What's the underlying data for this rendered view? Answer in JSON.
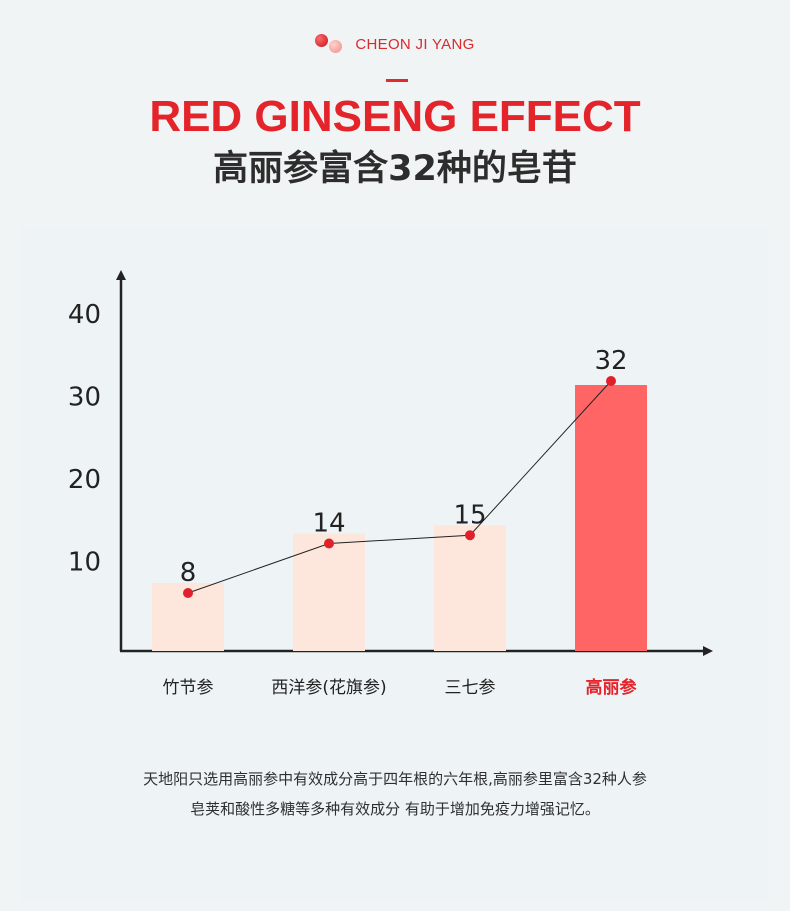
{
  "header": {
    "brand": "CHEON JI YANG",
    "title_en": "RED GINSENG EFFECT",
    "title_cn": "高丽参富含32种的皂苷"
  },
  "description": {
    "line1": "天地阳只选用高丽参中有效成分高于四年根的六年根,高丽参里富含32种人参",
    "line2": "皂荚和酸性多糖等多种有效成分  有助于增加免疫力增强记忆。"
  },
  "colors": {
    "accent": "#e3242b",
    "bar_light": "#fde6dc",
    "bar_highlight": "#ff6565",
    "point": "#e0202b",
    "axis": "#222222"
  },
  "chart_data": {
    "type": "bar",
    "title": "",
    "xlabel": "",
    "ylabel": "",
    "categories": [
      "竹节参",
      "西洋参(花旗参)",
      "三七参",
      "高丽参"
    ],
    "values": [
      8,
      14,
      15,
      32
    ],
    "data_labels": [
      "8",
      "14",
      "15",
      "32"
    ],
    "y_ticks": [
      "10",
      "20",
      "30",
      "40"
    ],
    "ylim": [
      0,
      40
    ],
    "highlight_index": 3,
    "overlay_line": true,
    "grid": false,
    "legend": "none"
  }
}
